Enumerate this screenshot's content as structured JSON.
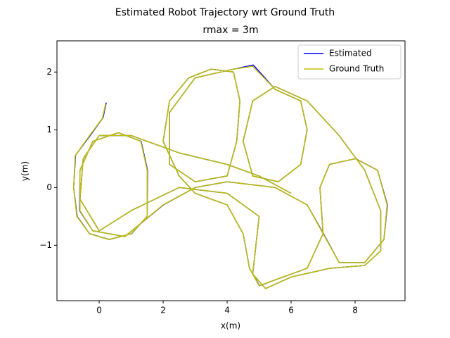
{
  "chart_data": {
    "type": "line",
    "title": "Estimated Robot Trajectory wrt Ground Truth",
    "subtitle": "rmax = 3m",
    "x_label": "x(m)",
    "y_label": "y(m)",
    "xlim": [
      -1.32,
      9.56
    ],
    "ylim": [
      -1.96,
      2.54
    ],
    "xticks": [
      0,
      2,
      4,
      6,
      8
    ],
    "yticks": [
      {
        "value": -1,
        "label": "−1"
      },
      0,
      1,
      2
    ],
    "legend": "upper right",
    "series": [
      {
        "name": "Estimated",
        "color": "#0000ff",
        "x": [
          0.22,
          0.12,
          -0.28,
          -0.74,
          -0.8,
          -0.69,
          -0.3,
          0.31,
          1.01,
          1.5,
          1.51,
          1.31,
          0.6,
          -0.2,
          -0.6,
          -0.61,
          -0.2,
          0.8,
          2.01,
          3,
          4.01,
          5.5,
          6.5,
          7.01,
          7.5,
          8.3,
          8.9,
          9.01,
          8.7,
          8.01,
          7.2,
          6.9,
          7,
          6.5,
          5.5,
          5.01,
          4.7,
          4.5,
          4,
          3,
          2.5,
          2,
          2.2,
          2.8,
          3.5,
          4.2,
          4.4,
          4.3,
          4,
          3,
          2.2,
          2.2,
          3,
          4.2,
          4.82,
          5.5,
          6.3,
          6.5,
          6.3,
          5.6,
          4.8,
          4.5,
          4.8,
          5.5,
          6.5,
          7.5,
          8.3,
          8.8,
          8.8,
          8.3,
          7.2,
          6,
          5.2,
          4.8,
          5,
          4,
          2.5,
          1,
          0,
          -0.6,
          -0.5,
          0,
          1,
          2.5,
          4,
          5,
          6
        ],
        "values": [
          1.47,
          1.21,
          0.9,
          0.56,
          0,
          -0.5,
          -0.8,
          -0.9,
          -0.8,
          -0.5,
          0.3,
          0.8,
          0.95,
          0.8,
          0.3,
          -0.4,
          -0.75,
          -0.85,
          -0.3,
          0,
          0.1,
          0,
          -0.3,
          -0.8,
          -1.3,
          -1.3,
          -0.9,
          -0.3,
          0.3,
          0.5,
          0.4,
          0,
          -0.8,
          -1.4,
          -1.6,
          -1.7,
          -1.4,
          -0.8,
          -0.3,
          -0.1,
          0.2,
          0.8,
          1.5,
          1.9,
          2.05,
          2,
          1.5,
          0.8,
          0.2,
          0.1,
          0.4,
          1.3,
          1.9,
          2.05,
          2.12,
          1.7,
          1.5,
          1,
          0.4,
          0.1,
          0.2,
          0.8,
          1.5,
          1.75,
          1.5,
          0.9,
          0.3,
          -0.4,
          -1.1,
          -1.35,
          -1.4,
          -1.55,
          -1.75,
          -1.5,
          -0.5,
          -0.1,
          0,
          -0.4,
          -0.75,
          -0.2,
          0.5,
          0.9,
          0.9,
          0.6,
          0.4,
          0.2,
          -0.1
        ]
      },
      {
        "name": "Ground Truth",
        "color": "#bfbf00",
        "x": [
          0.2,
          0.1,
          -0.3,
          -0.75,
          -0.8,
          -0.7,
          -0.3,
          0.3,
          1,
          1.5,
          1.5,
          1.3,
          0.6,
          -0.2,
          -0.6,
          -0.6,
          -0.2,
          0.8,
          2,
          3,
          4,
          5.5,
          6.5,
          7,
          7.5,
          8.3,
          8.9,
          9,
          8.7,
          8,
          7.2,
          6.9,
          7,
          6.5,
          5.5,
          5,
          4.7,
          4.5,
          4,
          3,
          2.5,
          2,
          2.2,
          2.8,
          3.5,
          4.2,
          4.4,
          4.3,
          4,
          3,
          2.2,
          2.2,
          3,
          4.2,
          4.8,
          5.5,
          6.3,
          6.5,
          6.3,
          5.6,
          4.8,
          4.5,
          4.8,
          5.5,
          6.5,
          7.5,
          8.3,
          8.8,
          8.8,
          8.3,
          7.2,
          6,
          5.2,
          4.8,
          5,
          4,
          2.5,
          1,
          0,
          -0.6,
          -0.5,
          0,
          1,
          2.5,
          4,
          5,
          6
        ],
        "values": [
          1.45,
          1.2,
          0.9,
          0.55,
          0,
          -0.5,
          -0.8,
          -0.9,
          -0.8,
          -0.5,
          0.3,
          0.8,
          0.95,
          0.8,
          0.3,
          -0.4,
          -0.75,
          -0.85,
          -0.3,
          0,
          0.1,
          0,
          -0.3,
          -0.8,
          -1.3,
          -1.3,
          -0.9,
          -0.3,
          0.3,
          0.5,
          0.4,
          0,
          -0.8,
          -1.4,
          -1.6,
          -1.7,
          -1.4,
          -0.8,
          -0.3,
          -0.1,
          0.2,
          0.8,
          1.5,
          1.9,
          2.05,
          2,
          1.5,
          0.8,
          0.2,
          0.1,
          0.4,
          1.3,
          1.9,
          2.05,
          2.1,
          1.7,
          1.5,
          1,
          0.4,
          0.1,
          0.2,
          0.8,
          1.5,
          1.75,
          1.5,
          0.9,
          0.3,
          -0.4,
          -1.1,
          -1.35,
          -1.4,
          -1.55,
          -1.75,
          -1.5,
          -0.5,
          -0.1,
          0,
          -0.4,
          -0.75,
          -0.2,
          0.5,
          0.9,
          0.9,
          0.6,
          0.4,
          0.2,
          -0.1
        ]
      }
    ]
  }
}
